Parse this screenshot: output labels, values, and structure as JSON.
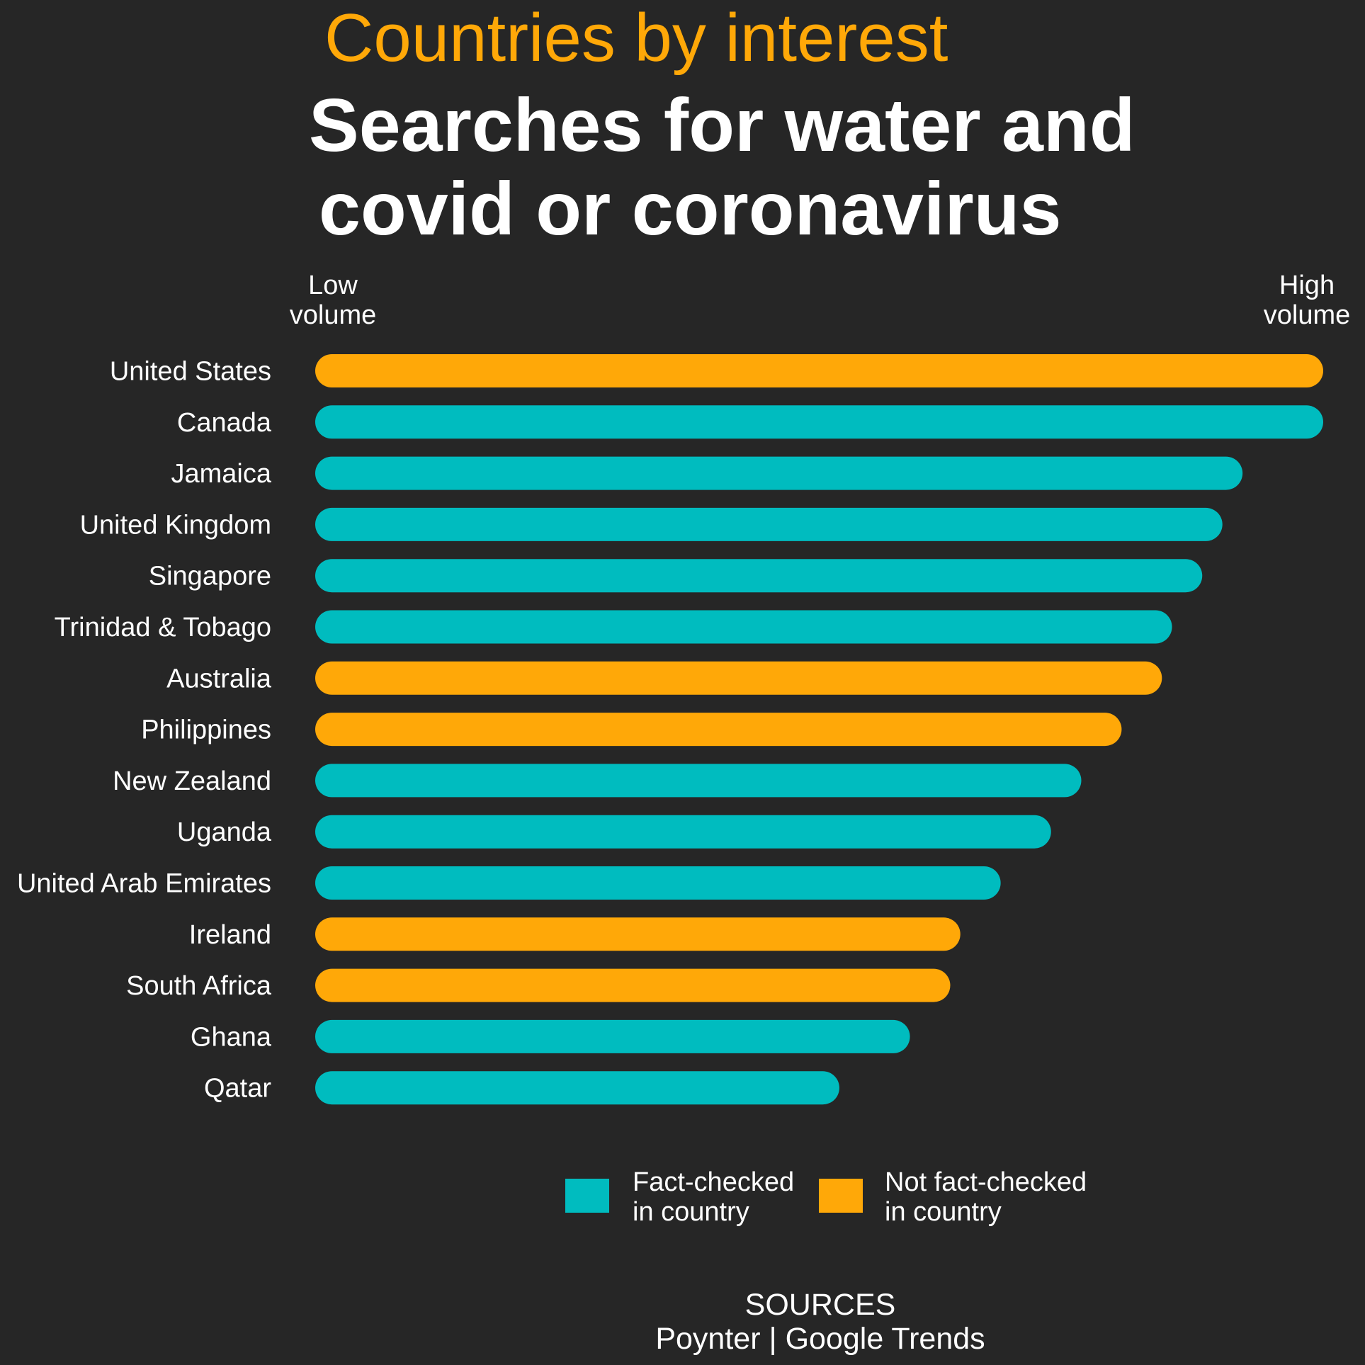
{
  "header": {
    "kicker": "Countries by interest",
    "title_line1": "Searches for water and",
    "title_line2": "covid or coronavirus"
  },
  "scale": {
    "low_line1": "Low",
    "low_line2": "volume",
    "high_line1": "High",
    "high_line2": "volume"
  },
  "colors": {
    "background": "#262626",
    "fact_checked": "#00bcbf",
    "not_fact_checked": "#ffa808",
    "text": "#ffffff"
  },
  "chart_data": {
    "type": "bar",
    "orientation": "horizontal",
    "xlim": [
      0,
      100
    ],
    "grid": false,
    "legend_position": "bottom",
    "categories": [
      "United States",
      "Canada",
      "Jamaica",
      "United Kingdom",
      "Singapore",
      "Trinidad & Tobago",
      "Australia",
      "Philippines",
      "New Zealand",
      "Uganda",
      "United Arab Emirates",
      "Ireland",
      "South Africa",
      "Ghana",
      "Qatar"
    ],
    "values": [
      100,
      100,
      92,
      90,
      88,
      85,
      84,
      80,
      76,
      73,
      68,
      64,
      63,
      59,
      52
    ],
    "group": [
      "not_fact_checked",
      "fact_checked",
      "fact_checked",
      "fact_checked",
      "fact_checked",
      "fact_checked",
      "not_fact_checked",
      "not_fact_checked",
      "fact_checked",
      "fact_checked",
      "fact_checked",
      "not_fact_checked",
      "not_fact_checked",
      "fact_checked",
      "fact_checked"
    ]
  },
  "legend": {
    "fact_checked_line1": "Fact-checked",
    "fact_checked_line2": "in country",
    "not_fact_checked_line1": "Not fact-checked",
    "not_fact_checked_line2": "in country"
  },
  "sources": {
    "heading": "SOURCES",
    "text": "Poynter | Google Trends"
  }
}
